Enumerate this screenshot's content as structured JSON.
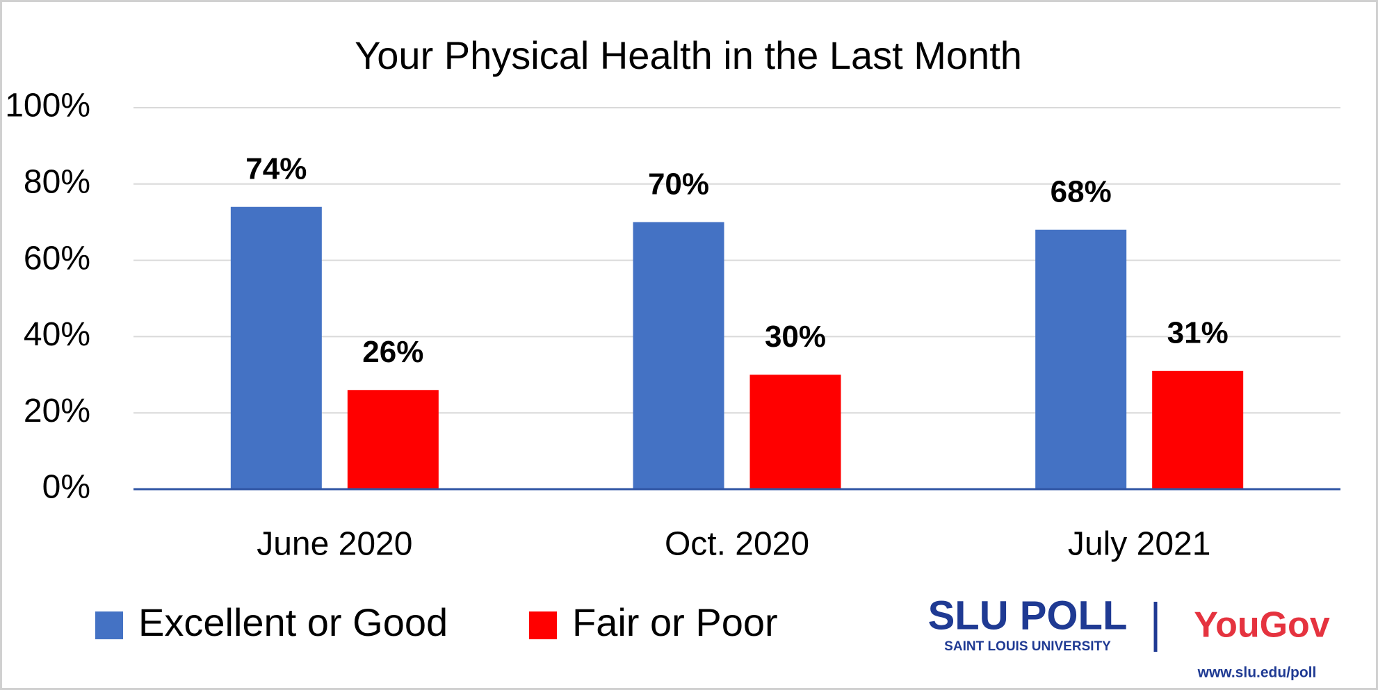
{
  "chart_data": {
    "type": "bar",
    "title": "Your Physical Health in the Last Month",
    "categories": [
      "June 2020",
      "Oct. 2020",
      "July 2021"
    ],
    "series": [
      {
        "name": "Excellent or Good",
        "color": "#4472c4",
        "values": [
          74,
          70,
          68
        ],
        "value_labels": [
          "74%",
          "70%",
          "68%"
        ]
      },
      {
        "name": "Fair or Poor",
        "color": "#ff0000",
        "values": [
          26,
          30,
          31
        ],
        "value_labels": [
          "26%",
          "30%",
          "31%"
        ]
      }
    ],
    "ylim": [
      0,
      100
    ],
    "yticks": [
      {
        "value": 0,
        "label": "0%"
      },
      {
        "value": 20,
        "label": "20%"
      },
      {
        "value": 40,
        "label": "40%"
      },
      {
        "value": 60,
        "label": "60%"
      },
      {
        "value": 80,
        "label": "80%"
      },
      {
        "value": 100,
        "label": "100%"
      }
    ],
    "grid": true,
    "legend": "bottom-left"
  },
  "branding": {
    "logo": "SLU POLL",
    "logo_subtitle": "SAINT LOUIS UNIVERSITY",
    "partner": "YouGov",
    "url": "www.slu.edu/poll"
  }
}
